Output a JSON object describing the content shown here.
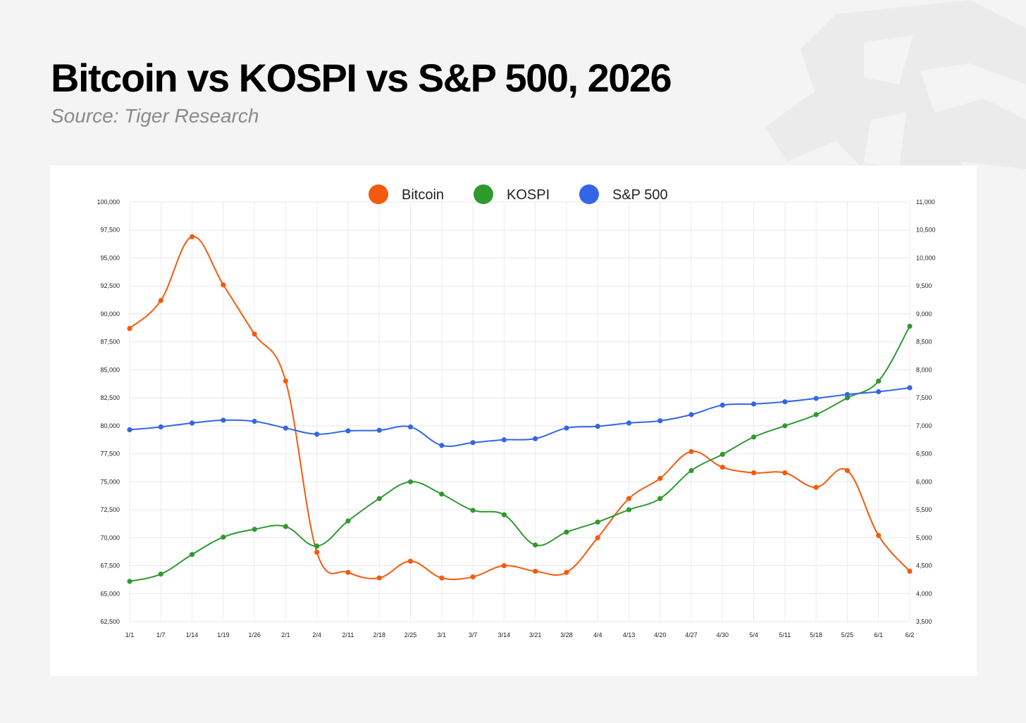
{
  "title": "Bitcoin vs KOSPI vs S&P 500, 2026",
  "subtitle": "Source: Tiger Research",
  "chart_data": {
    "type": "line",
    "x": [
      "1/1",
      "1/7",
      "1/14",
      "1/19",
      "1/26",
      "2/1",
      "2/4",
      "2/11",
      "2/18",
      "2/25",
      "3/1",
      "3/7",
      "3/14",
      "3/21",
      "3/28",
      "4/4",
      "4/13",
      "4/20",
      "4/27",
      "4/30",
      "5/4",
      "5/11",
      "5/18",
      "5/25",
      "6/1",
      "6/2"
    ],
    "left_axis": {
      "ylim": [
        62500,
        100000
      ],
      "ticks": [
        "62,500",
        "65,000",
        "67,500",
        "70,000",
        "72,500",
        "75,000",
        "77,500",
        "80,000",
        "82,500",
        "85,000",
        "87,500",
        "90,000",
        "92,500",
        "95,000",
        "97,500",
        "100,000"
      ]
    },
    "right_axis": {
      "ylim": [
        3500,
        11000
      ],
      "ticks": [
        "3,500",
        "4,000",
        "4,500",
        "5,000",
        "5,500",
        "6,000",
        "6,500",
        "7,000",
        "7,500",
        "8,000",
        "8,500",
        "9,000",
        "9,500",
        "10,000",
        "10,500",
        "11,000"
      ]
    },
    "legend_position": "top-center",
    "grid": true,
    "series": [
      {
        "name": "Bitcoin",
        "axis": "left",
        "color": "#f45a0c",
        "values": [
          88700,
          91200,
          96900,
          92600,
          88200,
          84000,
          68700,
          66900,
          66400,
          67900,
          66400,
          66500,
          67500,
          67000,
          66900,
          70000,
          73500,
          75300,
          77700,
          76300,
          75800,
          75800,
          74500,
          76000,
          70200,
          67000
        ]
      },
      {
        "name": "KOSPI",
        "axis": "right",
        "color": "#2e9a2e",
        "values": [
          4220,
          4350,
          4700,
          5010,
          5150,
          5200,
          4850,
          5300,
          5700,
          6000,
          5780,
          5490,
          5410,
          4870,
          5100,
          5280,
          5500,
          5700,
          6200,
          6490,
          6800,
          7000,
          7200,
          7500,
          7800,
          8780
        ]
      },
      {
        "name": "S&P 500",
        "axis": "right",
        "color": "#3366e6",
        "values": [
          6930,
          6980,
          7050,
          7100,
          7080,
          6960,
          6850,
          6910,
          6920,
          6980,
          6650,
          6700,
          6750,
          6770,
          6960,
          6990,
          7050,
          7090,
          7200,
          7370,
          7390,
          7430,
          7490,
          7560,
          7610,
          7680
        ]
      }
    ]
  }
}
